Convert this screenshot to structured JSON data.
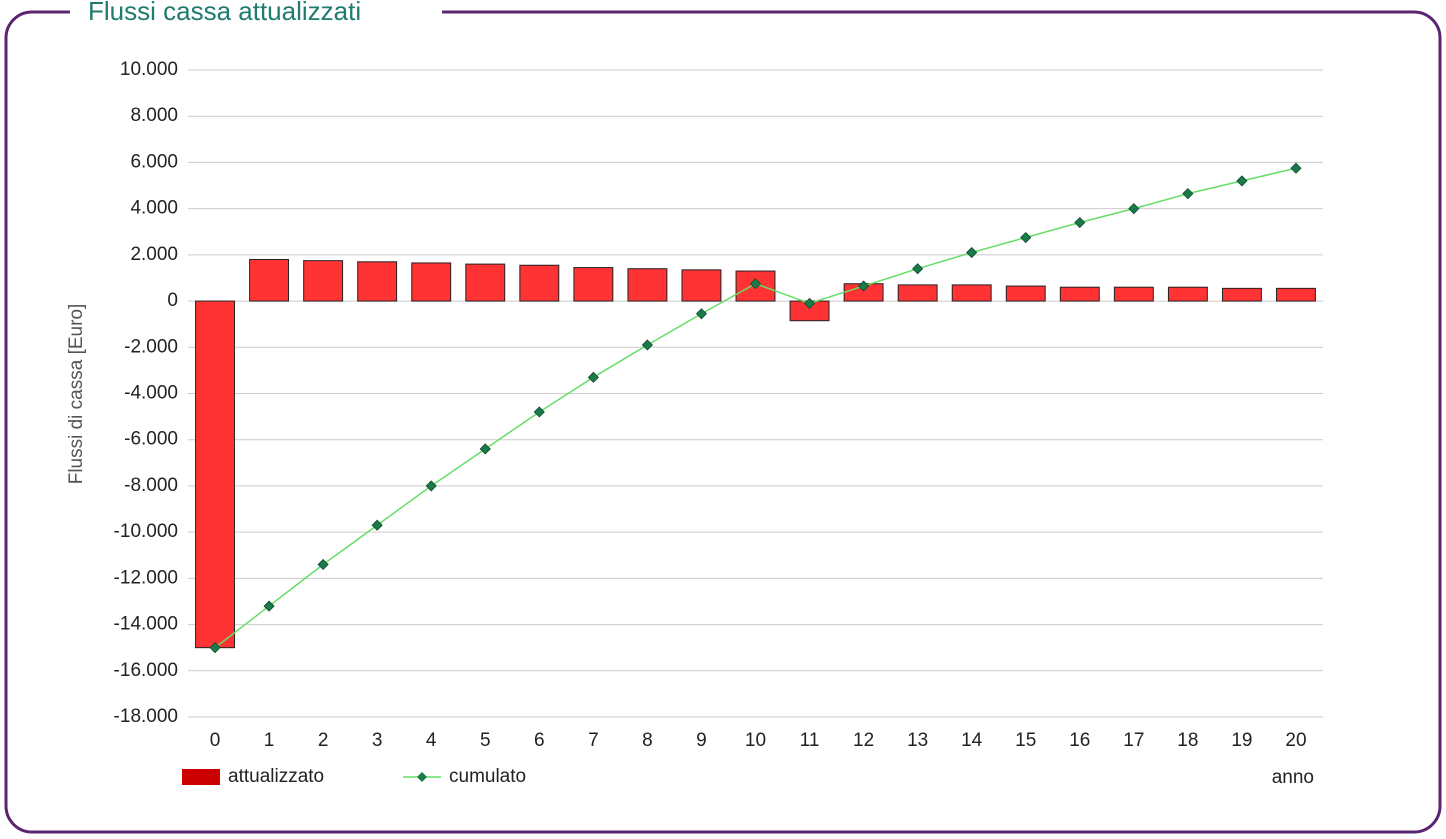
{
  "chart_data": {
    "type": "bar-line",
    "title": "Flussi cassa attualizzati",
    "y_label": "Flussi di cassa [Euro]",
    "x_label": "anno",
    "categories": [
      "0",
      "1",
      "2",
      "3",
      "4",
      "5",
      "6",
      "7",
      "8",
      "9",
      "10",
      "11",
      "12",
      "13",
      "14",
      "15",
      "16",
      "17",
      "18",
      "19",
      "20"
    ],
    "series": [
      {
        "name": "attualizzato",
        "type": "bar",
        "color": "#ff3333",
        "legend_color": "#cc0000",
        "values": [
          -15000,
          1800,
          1750,
          1700,
          1650,
          1600,
          1550,
          1450,
          1400,
          1350,
          1300,
          -850,
          750,
          700,
          700,
          650,
          600,
          600,
          600,
          550,
          550
        ]
      },
      {
        "name": "cumulato",
        "type": "line",
        "color": "#66dd66",
        "marker_color": "#1a7a4a",
        "values": [
          -15000,
          -13200,
          -11400,
          -9700,
          -8000,
          -6400,
          -4800,
          -3300,
          -1900,
          -550,
          750,
          -100,
          650,
          1400,
          2100,
          2750,
          3400,
          4000,
          4650,
          5200,
          5750
        ]
      }
    ],
    "ylim": [
      -18000,
      10000
    ],
    "yticks": [
      {
        "value": -18000,
        "label": "-18.000"
      },
      {
        "value": -16000,
        "label": "-16.000"
      },
      {
        "value": -14000,
        "label": "-14.000"
      },
      {
        "value": -12000,
        "label": "-12.000"
      },
      {
        "value": -10000,
        "label": "-10.000"
      },
      {
        "value": -8000,
        "label": "-8.000"
      },
      {
        "value": -6000,
        "label": "-6.000"
      },
      {
        "value": -4000,
        "label": "-4.000"
      },
      {
        "value": -2000,
        "label": "-2.000"
      },
      0,
      {
        "value": 2000,
        "label": "2.000"
      },
      {
        "value": 4000,
        "label": "4.000"
      },
      {
        "value": 6000,
        "label": "6.000"
      },
      {
        "value": 8000,
        "label": "8.000"
      },
      {
        "value": 10000,
        "label": "10.000"
      }
    ],
    "grid": true
  }
}
